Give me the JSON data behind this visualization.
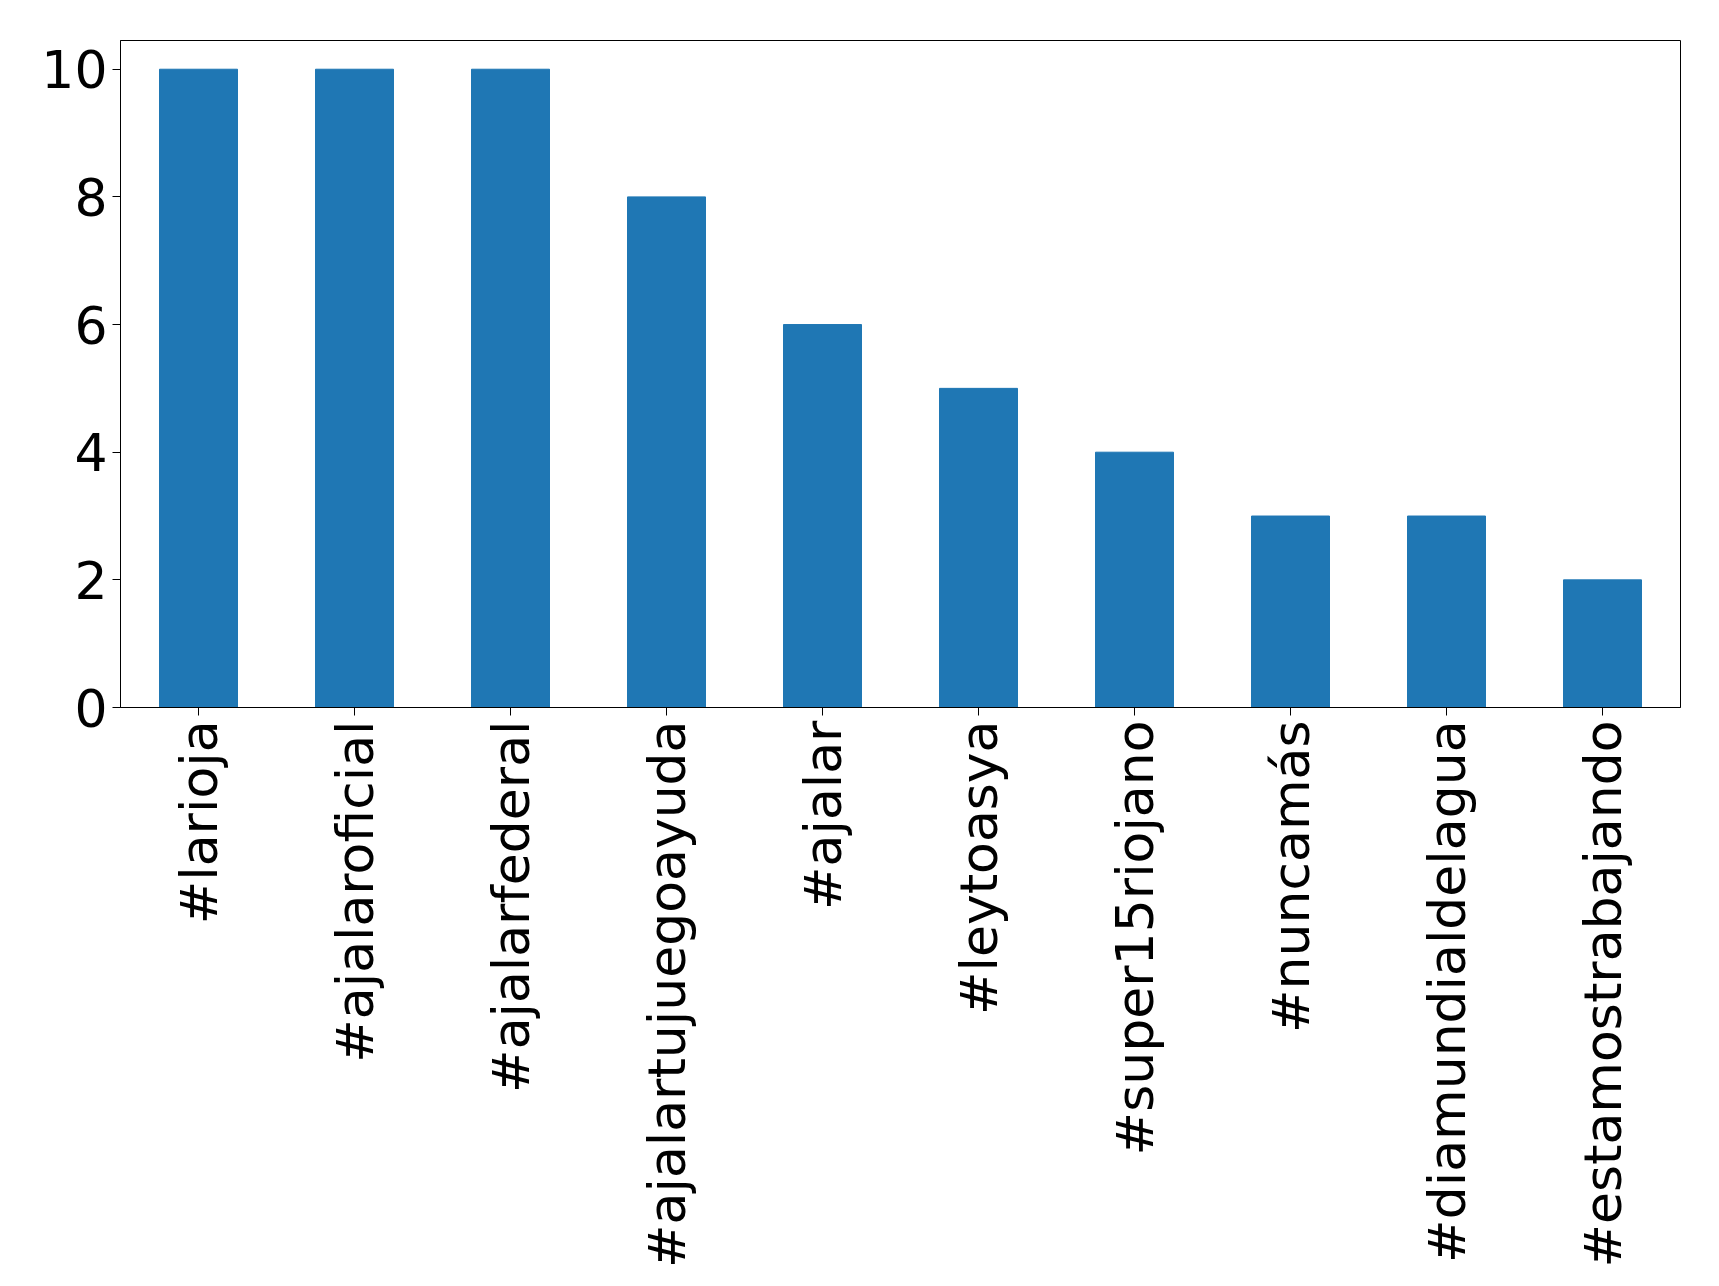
{
  "chart_data": {
    "type": "bar",
    "categories": [
      "#larioja",
      "#ajalaroficial",
      "#ajalarfederal",
      "#ajalartujuegoayuda",
      "#ajalar",
      "#leytoasya",
      "#super15riojano",
      "#nuncamás",
      "#diamundialdelagua",
      "#estamostrabajando"
    ],
    "values": [
      10,
      10,
      10,
      8,
      6,
      5,
      4,
      3,
      3,
      2
    ],
    "color": "#1f77b4",
    "ylim": [
      0,
      10.45
    ],
    "yticks": [
      0,
      2,
      4,
      6,
      8,
      10
    ],
    "grid": false
  }
}
